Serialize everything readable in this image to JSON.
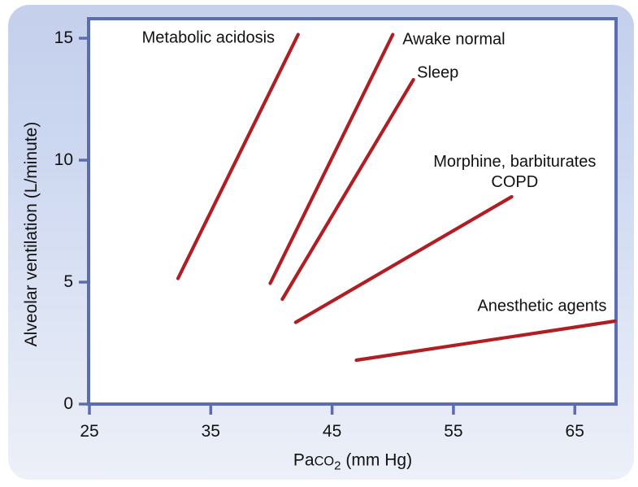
{
  "colors": {
    "series_line": "#b01e24",
    "axis": "#5b6cb2",
    "panel_top": "#c4d0ec",
    "panel_bottom": "#edf0f8",
    "text": "#111111",
    "plot_background": "#ffffff"
  },
  "chart_data": {
    "type": "line",
    "title": "",
    "xlabel": "Paco2 (mm Hg)",
    "xlabel_parts": {
      "pre": "Pa",
      "smallcaps": "co",
      "sub": "2",
      "post": " (mm Hg)"
    },
    "ylabel": "Alveolar ventilation (L/minute)",
    "xlim": [
      25,
      68.4
    ],
    "ylim": [
      0,
      15.8
    ],
    "x_ticks": [
      25,
      35,
      45,
      55,
      65
    ],
    "y_ticks": [
      0,
      5,
      10,
      15
    ],
    "grid": false,
    "legend_position": "inline-labels",
    "series": [
      {
        "name": "Metabolic acidosis",
        "x": [
          32.3,
          42.2
        ],
        "y": [
          5.15,
          15.15
        ]
      },
      {
        "name": "Awake normal",
        "x": [
          39.9,
          50.0
        ],
        "y": [
          4.95,
          15.15
        ]
      },
      {
        "name": "Sleep",
        "x": [
          40.9,
          51.7
        ],
        "y": [
          4.3,
          13.3
        ]
      },
      {
        "name": "Morphine, barbiturates / COPD",
        "x": [
          42.0,
          59.8
        ],
        "y": [
          3.35,
          8.5
        ]
      },
      {
        "name": "Anesthetic agents",
        "x": [
          47.0,
          68.3
        ],
        "y": [
          1.8,
          3.4
        ]
      }
    ],
    "annotations": [
      {
        "lines": [
          "Metabolic acidosis"
        ],
        "x": 34.8,
        "y": 15.0,
        "align": "center"
      },
      {
        "lines": [
          "Awake normal"
        ],
        "x": 50.8,
        "y": 14.93,
        "align": "left"
      },
      {
        "lines": [
          "Sleep"
        ],
        "x": 52.0,
        "y": 13.57,
        "align": "left"
      },
      {
        "lines": [
          "Morphine, barbiturates",
          "COPD"
        ],
        "x": 60.05,
        "y": 9.5,
        "align": "center"
      },
      {
        "lines": [
          "Anesthetic agents"
        ],
        "x": 62.3,
        "y": 4.0,
        "align": "center"
      }
    ]
  }
}
